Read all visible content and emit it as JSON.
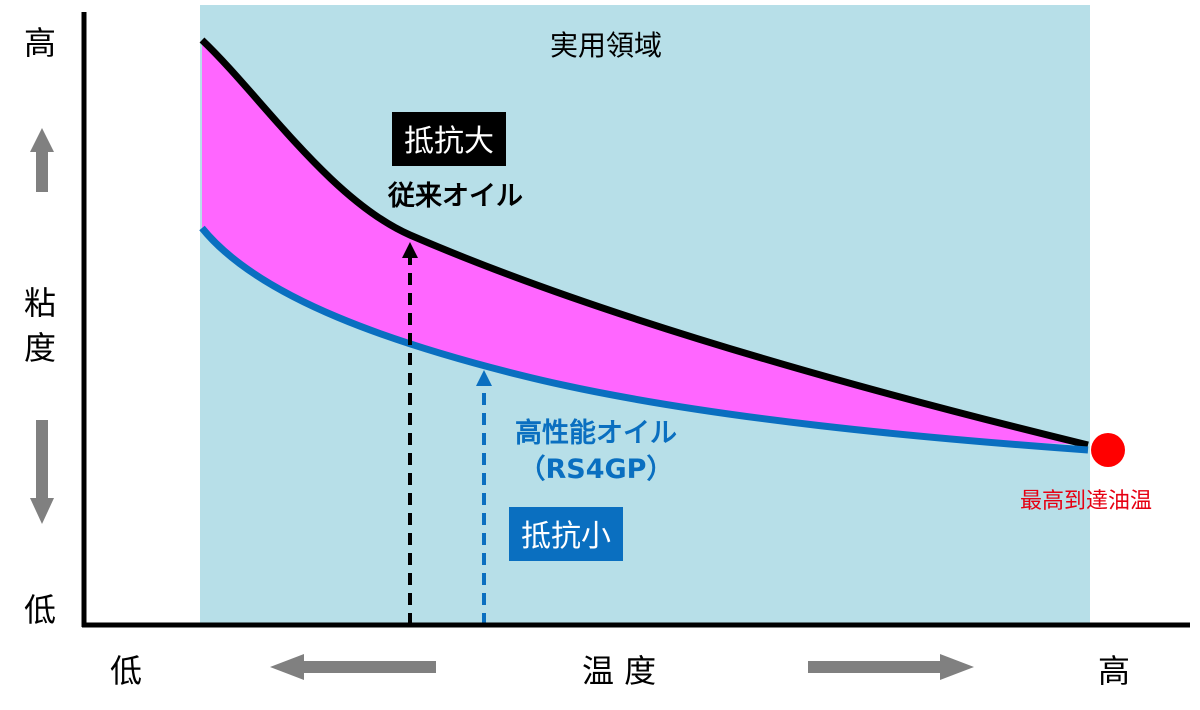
{
  "y_axis": {
    "high": "高",
    "label_line1": "粘",
    "label_line2": "度",
    "low": "低"
  },
  "x_axis": {
    "low": "低",
    "label": "温 度",
    "high": "高"
  },
  "region": {
    "title": "実用領域"
  },
  "conventional_oil": {
    "badge": "抵抗大",
    "name": "従来オイル",
    "line_color": "#000000"
  },
  "performance_oil": {
    "name": "高性能オイル",
    "product": "（RS4GP）",
    "badge": "抵抗小",
    "line_color": "#0a6fc0"
  },
  "max_point": {
    "label": "最高到達油温",
    "color": "#ff0000"
  },
  "colors": {
    "region_fill": "#b7dfe8",
    "gap_fill": "#ff66ff",
    "arrow_gray": "#808080"
  }
}
